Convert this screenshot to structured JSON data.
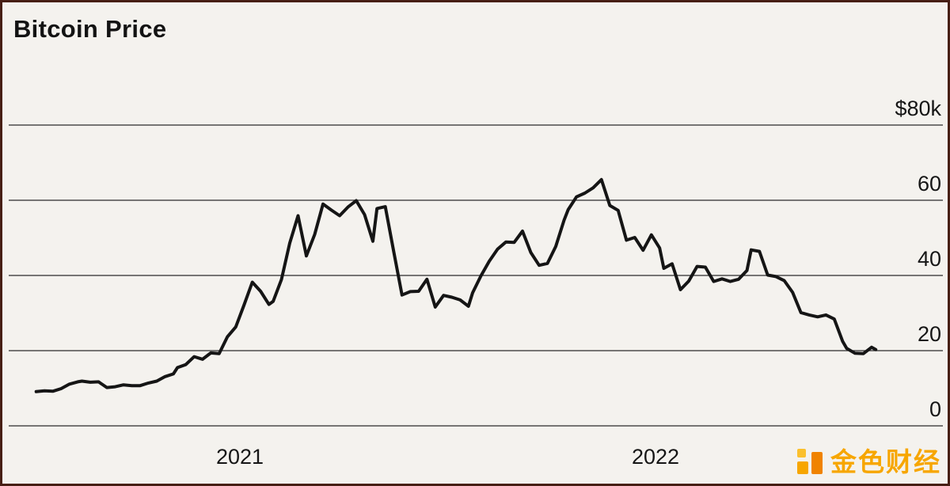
{
  "title": "Bitcoin Price",
  "watermark": {
    "text": "金色财经",
    "color": "#f7a600"
  },
  "colors": {
    "line": "#151515",
    "grid": "#2b2b2b",
    "background": "#f4f2ee",
    "frame": "#471f15",
    "accent": "#f7a600"
  },
  "chart_data": {
    "type": "line",
    "title": "Bitcoin Price",
    "ylabel": "",
    "xlabel": "",
    "units": "USD thousands",
    "ylim": [
      0,
      80
    ],
    "yticks": [
      0,
      20,
      40,
      60,
      80
    ],
    "ytick_labels": [
      "0",
      "20",
      "40",
      "60",
      "$80k"
    ],
    "xticks": [
      2021,
      2022
    ],
    "xtick_labels": [
      "2021",
      "2022"
    ],
    "grid": "horizontal",
    "legend": "none",
    "x": [
      2020.51,
      2020.53,
      2020.55,
      2020.57,
      2020.59,
      2020.61,
      2020.62,
      2020.64,
      2020.66,
      2020.68,
      2020.7,
      2020.72,
      2020.74,
      2020.76,
      2020.78,
      2020.8,
      2020.82,
      2020.84,
      2020.85,
      2020.87,
      2020.89,
      2020.91,
      2020.93,
      2020.95,
      2020.97,
      2020.99,
      2021.01,
      2021.03,
      2021.05,
      2021.07,
      2021.08,
      2021.1,
      2021.12,
      2021.14,
      2021.16,
      2021.18,
      2021.2,
      2021.22,
      2021.24,
      2021.26,
      2021.28,
      2021.3,
      2021.32,
      2021.33,
      2021.35,
      2021.37,
      2021.39,
      2021.41,
      2021.43,
      2021.45,
      2021.47,
      2021.49,
      2021.51,
      2021.53,
      2021.55,
      2021.56,
      2021.58,
      2021.6,
      2021.62,
      2021.64,
      2021.66,
      2021.68,
      2021.7,
      2021.72,
      2021.74,
      2021.76,
      2021.78,
      2021.79,
      2021.81,
      2021.83,
      2021.85,
      2021.87,
      2021.89,
      2021.91,
      2021.93,
      2021.95,
      2021.97,
      2021.99,
      2022.01,
      2022.02,
      2022.04,
      2022.06,
      2022.08,
      2022.1,
      2022.12,
      2022.14,
      2022.16,
      2022.18,
      2022.2,
      2022.22,
      2022.23,
      2022.25,
      2022.27,
      2022.29,
      2022.31,
      2022.33,
      2022.35,
      2022.37,
      2022.39,
      2022.41,
      2022.43,
      2022.45,
      2022.46,
      2022.48,
      2022.5,
      2022.52,
      2022.53
    ],
    "values": [
      9.1,
      9.3,
      9.2,
      9.9,
      11.1,
      11.7,
      11.9,
      11.6,
      11.7,
      10.2,
      10.4,
      10.9,
      10.7,
      10.7,
      11.4,
      11.9,
      13.1,
      13.8,
      15.5,
      16.3,
      18.4,
      17.7,
      19.4,
      19.2,
      23.7,
      26.3,
      32.1,
      38.2,
      35.8,
      32.3,
      33.1,
      38.9,
      48.6,
      55.9,
      45.2,
      50.9,
      59.0,
      57.4,
      55.9,
      58.2,
      59.9,
      56.2,
      49.1,
      57.8,
      58.3,
      46.5,
      34.8,
      35.7,
      35.8,
      39.0,
      31.6,
      34.7,
      34.2,
      33.5,
      31.8,
      35.4,
      39.9,
      43.8,
      47.0,
      48.9,
      48.8,
      51.8,
      46.1,
      42.7,
      43.2,
      47.7,
      54.7,
      57.5,
      60.9,
      61.9,
      63.3,
      65.5,
      58.6,
      57.3,
      49.4,
      50.1,
      46.7,
      50.8,
      47.3,
      41.9,
      43.1,
      36.2,
      38.5,
      42.4,
      42.2,
      38.4,
      39.1,
      38.4,
      39.0,
      41.3,
      46.8,
      46.4,
      40.1,
      39.7,
      38.6,
      35.5,
      30.1,
      29.5,
      29.0,
      29.5,
      28.4,
      22.5,
      20.6,
      19.3,
      19.2,
      20.9,
      20.3
    ]
  }
}
